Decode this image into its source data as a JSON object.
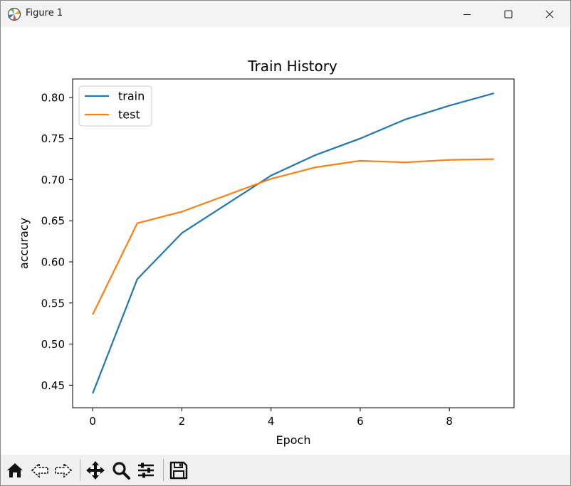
{
  "window": {
    "title": "Figure 1",
    "controls": [
      "minimize",
      "maximize",
      "close"
    ]
  },
  "toolbar": {
    "buttons": [
      {
        "name": "home",
        "icon": "home-icon"
      },
      {
        "name": "back",
        "icon": "arrow-left-icon"
      },
      {
        "name": "forward",
        "icon": "arrow-right-icon"
      },
      {
        "name": "pan",
        "icon": "move-icon"
      },
      {
        "name": "zoom",
        "icon": "magnifier-icon"
      },
      {
        "name": "configure-subplots",
        "icon": "sliders-icon"
      },
      {
        "name": "save",
        "icon": "floppy-disk-icon"
      }
    ]
  },
  "chart_data": {
    "type": "line",
    "title": "Train History",
    "xlabel": "Epoch",
    "ylabel": "accuracy",
    "x": [
      0,
      1,
      2,
      3,
      4,
      5,
      6,
      7,
      8,
      9
    ],
    "xlim": [
      -0.45,
      9.45
    ],
    "ylim": [
      0.4226,
      0.8224
    ],
    "xticks": [
      "0",
      "2",
      "4",
      "6",
      "8"
    ],
    "yticks": [
      "0.45",
      "0.50",
      "0.55",
      "0.60",
      "0.65",
      "0.70",
      "0.75",
      "0.80"
    ],
    "grid": false,
    "legend_position": "upper left",
    "series": [
      {
        "name": "train",
        "color": "#1f77b4",
        "values": [
          0.44,
          0.579,
          0.635,
          0.67,
          0.705,
          0.73,
          0.75,
          0.773,
          0.79,
          0.805
        ]
      },
      {
        "name": "test",
        "color": "#ff7f0e",
        "values": [
          0.536,
          0.647,
          0.661,
          0.681,
          0.701,
          0.715,
          0.723,
          0.721,
          0.724,
          0.725
        ]
      }
    ]
  }
}
